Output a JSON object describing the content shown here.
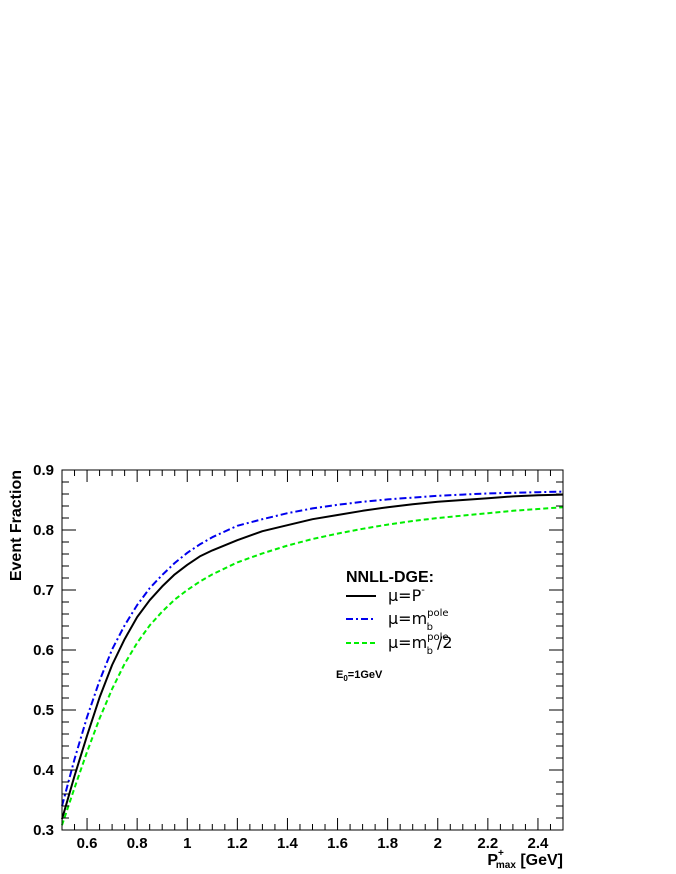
{
  "chart_data": {
    "type": "line",
    "xlabel": {
      "main": "P",
      "sup": "+",
      "sub": "max",
      "unit": " [GeV]"
    },
    "ylabel": "Event Fraction",
    "xlim": [
      0.5,
      2.5
    ],
    "ylim": [
      0.3,
      0.9
    ],
    "x_ticks": [
      "0.6",
      "0.8",
      "1",
      "1.2",
      "1.4",
      "1.6",
      "1.8",
      "2",
      "2.2",
      "2.4"
    ],
    "y_ticks": [
      "0.3",
      "0.4",
      "0.5",
      "0.6",
      "0.7",
      "0.8",
      "0.9"
    ],
    "grid": false,
    "legend": {
      "title": "NNLL-DGE:",
      "placement": "center-right",
      "entries": [
        {
          "series": 0,
          "label": "μ=P",
          "sup": "-",
          "sub": "",
          "tail": ""
        },
        {
          "series": 1,
          "label": "μ=m",
          "sup": "pole",
          "sub": "b",
          "tail": ""
        },
        {
          "series": 2,
          "label": "μ=m",
          "sup": "pole",
          "sub": "b",
          "tail": "/2"
        }
      ]
    },
    "annotation": {
      "main": "E",
      "sub": "0",
      "tail": "=1GeV"
    },
    "series": [
      {
        "color": "#000000",
        "dash": "solid",
        "x": [
          0.5,
          0.55,
          0.6,
          0.65,
          0.7,
          0.75,
          0.8,
          0.85,
          0.9,
          0.95,
          1.0,
          1.05,
          1.1,
          1.2,
          1.3,
          1.4,
          1.5,
          1.6,
          1.7,
          1.8,
          1.9,
          2.0,
          2.1,
          2.2,
          2.3,
          2.4,
          2.5
        ],
        "y": [
          0.318,
          0.39,
          0.457,
          0.521,
          0.575,
          0.618,
          0.655,
          0.683,
          0.706,
          0.726,
          0.742,
          0.756,
          0.766,
          0.783,
          0.798,
          0.808,
          0.818,
          0.825,
          0.832,
          0.838,
          0.843,
          0.847,
          0.85,
          0.853,
          0.856,
          0.858,
          0.859
        ]
      },
      {
        "color": "#0000ee",
        "dash": "dashdot",
        "x": [
          0.5,
          0.55,
          0.6,
          0.65,
          0.7,
          0.75,
          0.8,
          0.85,
          0.9,
          0.95,
          1.0,
          1.05,
          1.1,
          1.2,
          1.3,
          1.4,
          1.5,
          1.6,
          1.7,
          1.8,
          1.9,
          2.0,
          2.1,
          2.2,
          2.3,
          2.4,
          2.5
        ],
        "y": [
          0.34,
          0.418,
          0.488,
          0.549,
          0.601,
          0.641,
          0.675,
          0.703,
          0.725,
          0.745,
          0.762,
          0.776,
          0.788,
          0.807,
          0.818,
          0.828,
          0.836,
          0.842,
          0.847,
          0.851,
          0.854,
          0.857,
          0.859,
          0.861,
          0.862,
          0.863,
          0.864
        ]
      },
      {
        "color": "#00ee00",
        "dash": "dashed",
        "x": [
          0.5,
          0.55,
          0.6,
          0.65,
          0.7,
          0.75,
          0.8,
          0.85,
          0.9,
          0.95,
          1.0,
          1.05,
          1.1,
          1.2,
          1.3,
          1.4,
          1.5,
          1.6,
          1.7,
          1.8,
          1.9,
          2.0,
          2.1,
          2.2,
          2.3,
          2.4,
          2.5
        ],
        "y": [
          0.308,
          0.37,
          0.43,
          0.486,
          0.535,
          0.577,
          0.612,
          0.641,
          0.664,
          0.684,
          0.7,
          0.714,
          0.726,
          0.746,
          0.761,
          0.774,
          0.785,
          0.794,
          0.802,
          0.809,
          0.815,
          0.82,
          0.824,
          0.828,
          0.832,
          0.835,
          0.838
        ]
      }
    ]
  }
}
